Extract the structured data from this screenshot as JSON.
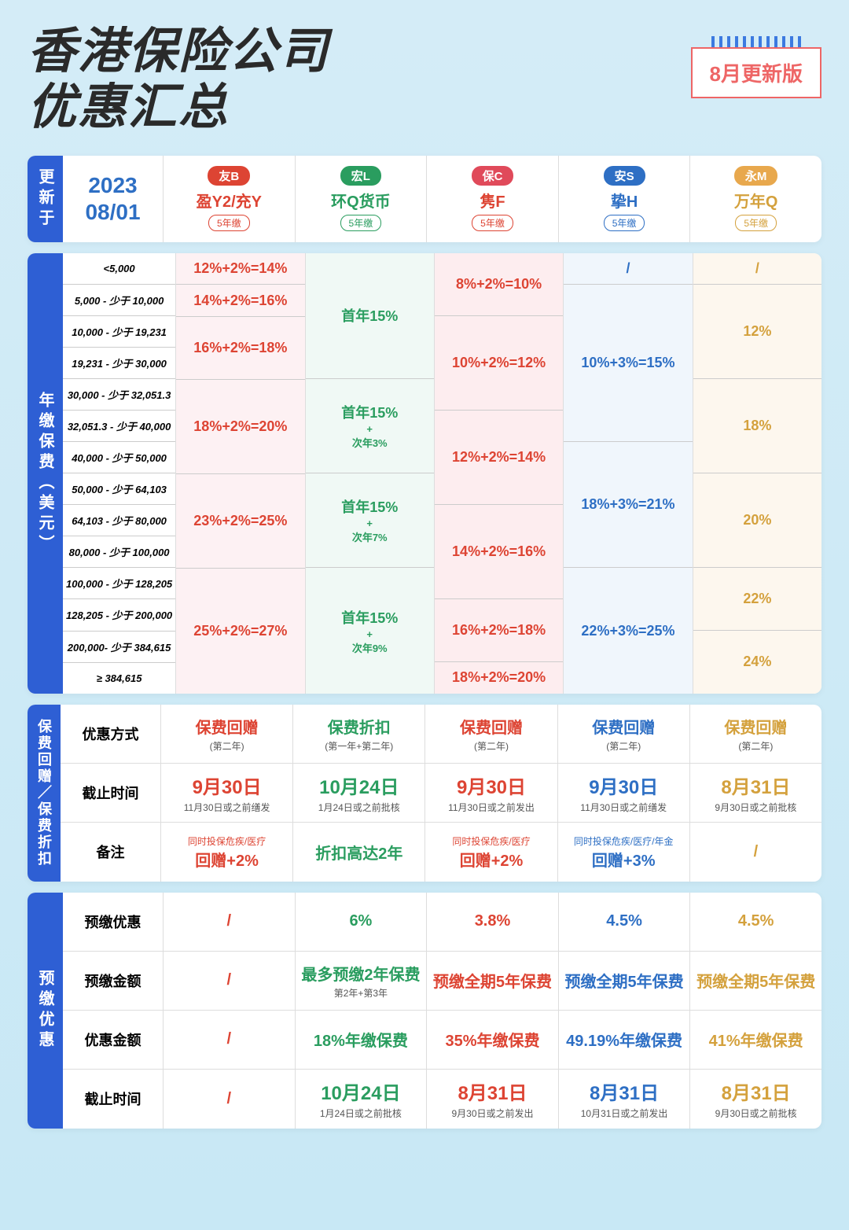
{
  "header": {
    "title_l1": "香港保险公司",
    "title_l2": "优惠汇总",
    "badge": "8月更新版"
  },
  "colors": {
    "bg": "#d4ecf7",
    "vlabel": "#2e5fd4",
    "b": "#d43",
    "l": "#2a9d5f",
    "c": "#d43",
    "s": "#2e6fc4",
    "m": "#d4a13d",
    "pill_b": "#d43",
    "pill_l": "#2a9d5f",
    "pill_c": "#e04a5a",
    "pill_s": "#2e6fc4",
    "pill_m": "#e8a84d"
  },
  "companies": {
    "b": {
      "pill": "友B",
      "name": "盈Y2/充Y",
      "term": "5年缴"
    },
    "l": {
      "pill": "宏L",
      "name": "环Q货币",
      "term": "5年缴"
    },
    "c": {
      "pill": "保C",
      "name": "隽F",
      "term": "5年缴"
    },
    "s": {
      "pill": "安S",
      "name": "挚H",
      "term": "5年缴"
    },
    "m": {
      "pill": "永M",
      "name": "万年Q",
      "term": "5年缴"
    }
  },
  "sec1": {
    "label": "更新于",
    "date_y": "2023",
    "date_md": "08/01"
  },
  "tiers": {
    "label": "年缴保费（美元）",
    "labels": [
      "<5,000",
      "5,000  -  少于 10,000",
      "10,000  -  少于 19,231",
      "19,231  -  少于 30,000",
      "30,000  - 少于 32,051.3",
      "32,051.3 - 少于 40,000",
      "40,000  -  少于 50,000",
      "50,000  -  少于 64,103",
      "64,103  - 少于 80,000",
      "80,000 - 少于 100,000",
      "100,000  - 少于 128,205",
      "128,205  - 少于 200,000",
      "200,000- 少于 384,615",
      "≥ 384,615"
    ],
    "b": [
      {
        "span": 1,
        "text": "12%+2%=14%"
      },
      {
        "span": 1,
        "text": "14%+2%=16%"
      },
      {
        "span": 2,
        "text": "16%+2%=18%"
      },
      {
        "span": 3,
        "text": "18%+2%=20%"
      },
      {
        "span": 3,
        "text": "23%+2%=25%"
      },
      {
        "span": 4,
        "text": "25%+2%=27%"
      }
    ],
    "l": [
      {
        "span": 4,
        "text": "首年15%",
        "sub": ""
      },
      {
        "span": 3,
        "text": "首年15%",
        "sub": "+\n次年3%"
      },
      {
        "span": 3,
        "text": "首年15%",
        "sub": "+\n次年7%"
      },
      {
        "span": 4,
        "text": "首年15%",
        "sub": "+\n次年9%"
      }
    ],
    "c": [
      {
        "span": 2,
        "text": "8%+2%=10%"
      },
      {
        "span": 3,
        "text": "10%+2%=12%"
      },
      {
        "span": 3,
        "text": "12%+2%=14%"
      },
      {
        "span": 3,
        "text": "14%+2%=16%"
      },
      {
        "span": 2,
        "text": "16%+2%=18%"
      },
      {
        "span": 1,
        "text": "18%+2%=20%"
      }
    ],
    "s": [
      {
        "span": 1,
        "text": "/"
      },
      {
        "span": 5,
        "text": "10%+3%=15%"
      },
      {
        "span": 4,
        "text": "18%+3%=21%"
      },
      {
        "span": 4,
        "text": "22%+3%=25%"
      }
    ],
    "m": [
      {
        "span": 1,
        "text": "/"
      },
      {
        "span": 3,
        "text": "12%"
      },
      {
        "span": 3,
        "text": "18%"
      },
      {
        "span": 3,
        "text": "20%"
      },
      {
        "span": 2,
        "text": "22%"
      },
      {
        "span": 2,
        "text": "24%"
      }
    ]
  },
  "rebate": {
    "label": "保费回赠／保费折扣",
    "rows": [
      {
        "k": "优惠方式",
        "b": {
          "t": "保费回赠",
          "s": "(第二年)"
        },
        "l": {
          "t": "保费折扣",
          "s": "(第一年+第二年)"
        },
        "c": {
          "t": "保费回赠",
          "s": "(第二年)"
        },
        "s": {
          "t": "保费回赠",
          "s": "(第二年)"
        },
        "m": {
          "t": "保费回赠",
          "s": "(第二年)"
        }
      },
      {
        "k": "截止时间",
        "b": {
          "t": "9月30日",
          "s": "11月30日或之前缮发"
        },
        "l": {
          "t": "10月24日",
          "s": "1月24日或之前批核"
        },
        "c": {
          "t": "9月30日",
          "s": "11月30日或之前发出"
        },
        "s": {
          "t": "9月30日",
          "s": "11月30日或之前缮发"
        },
        "m": {
          "t": "8月31日",
          "s": "9月30日或之前批核"
        }
      },
      {
        "k": "备注",
        "b": {
          "pre": "同时投保危疾/医疗",
          "t": "回赠+2%"
        },
        "l": {
          "t": "折扣高达2年"
        },
        "c": {
          "pre": "同时投保危疾/医疗",
          "t": "回赠+2%"
        },
        "s": {
          "pre": "同时投保危疾/医疗/年金",
          "t": "回赠+3%"
        },
        "m": {
          "t": "/"
        }
      }
    ]
  },
  "prepay": {
    "label": "预缴优惠",
    "rows": [
      {
        "k": "预缴优惠",
        "b": "/",
        "l": "6%",
        "c": "3.8%",
        "s": "4.5%",
        "m": "4.5%"
      },
      {
        "k": "预缴金额",
        "b": "/",
        "l": {
          "t": "最多预缴2年保费",
          "s": "第2年+第3年"
        },
        "c": "预缴全期5年保费",
        "s": "预缴全期5年保费",
        "m": "预缴全期5年保费"
      },
      {
        "k": "优惠金额",
        "b": "/",
        "l": "18%年缴保费",
        "c": "35%年缴保费",
        "s": "49.19%年缴保费",
        "m": "41%年缴保费"
      },
      {
        "k": "截止时间",
        "b": "/",
        "l": {
          "t": "10月24日",
          "s": "1月24日或之前批核"
        },
        "c": {
          "t": "8月31日",
          "s": "9月30日或之前发出"
        },
        "s": {
          "t": "8月31日",
          "s": "10月31日或之前发出"
        },
        "m": {
          "t": "8月31日",
          "s": "9月30日或之前批核"
        }
      }
    ]
  }
}
